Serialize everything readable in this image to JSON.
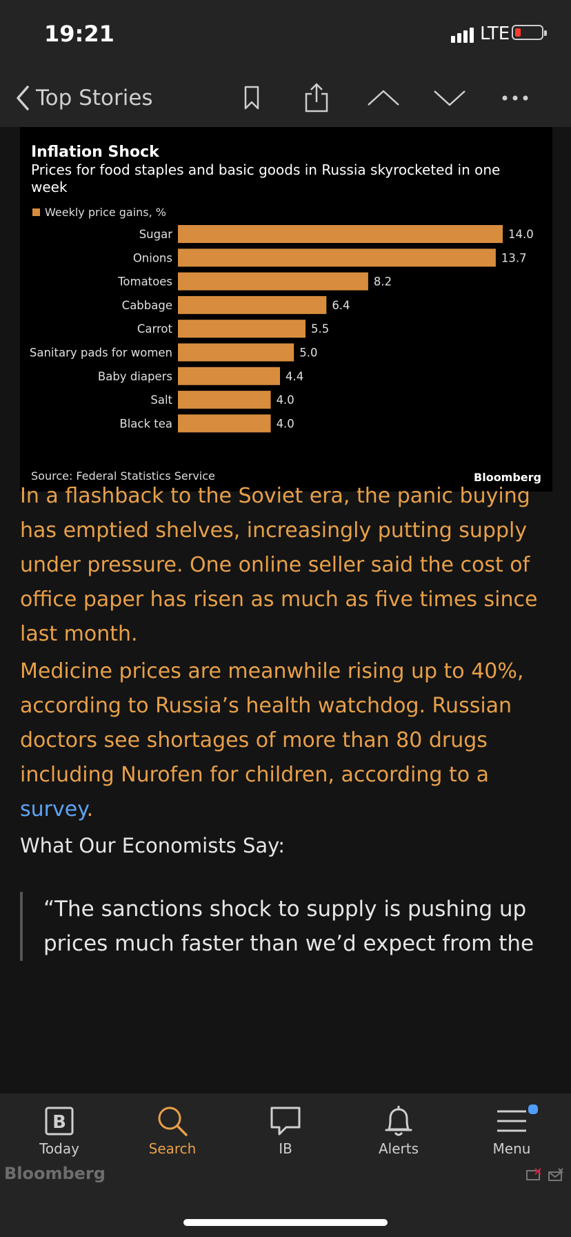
{
  "status_bar": {
    "time": "19:21",
    "carrier": "LTE"
  },
  "nav": {
    "back_label": "Top Stories"
  },
  "chart_data": {
    "type": "bar",
    "title": "Inflation Shock",
    "subtitle": "Prices for food staples and basic goods in Russia skyrocketed in one week",
    "legend": [
      "Weekly price gains, %"
    ],
    "categories": [
      "Sugar",
      "Onions",
      "Tomatoes",
      "Cabbage",
      "Carrot",
      "Sanitary pads for women",
      "Baby diapers",
      "Salt",
      "Black tea"
    ],
    "values": [
      14.0,
      13.7,
      8.2,
      6.4,
      5.5,
      5.0,
      4.4,
      4.0,
      4.0
    ],
    "value_labels": [
      "14.0",
      "13.7",
      "8.2",
      "6.4",
      "5.5",
      "5.0",
      "4.4",
      "4.0",
      "4.0"
    ],
    "orientation": "horizontal",
    "xlim": [
      0,
      14
    ],
    "bar_color": "#d88d3e",
    "source": "Source: Federal Statistics Service",
    "brand": "Bloomberg"
  },
  "article": {
    "paragraph_1": "In a flashback to the Soviet era, the panic buying has emptied shelves, increasingly putting supply under pressure. One online seller said the cost of office paper has risen as much as five times since last month.",
    "paragraph_2": "Medicine prices are meanwhile rising up to 40%, according to Russia’s health watchdog. Russian doctors see shortages of more than 80 drugs including Nurofen for children, according to a ",
    "paragraph_2_link": "survey",
    "paragraph_2_end": ".",
    "subhead": "What Our Economists Say:",
    "quote": "“The sanctions shock to supply is pushing up prices much faster than we’d expect from the"
  },
  "tabs": [
    {
      "label": "Today",
      "icon": "bloomberg-b-icon"
    },
    {
      "label": "Search",
      "icon": "search-icon"
    },
    {
      "label": "IB",
      "icon": "chat-bubble-icon"
    },
    {
      "label": "Alerts",
      "icon": "bell-icon"
    },
    {
      "label": "Menu",
      "icon": "menu-icon"
    }
  ],
  "active_tab": "Search",
  "footer": {
    "brand": "Bloomberg"
  },
  "colors": {
    "accent": "#e8a04a",
    "link": "#5ea3f3",
    "bar": "#d88d3e",
    "background": "#141414",
    "bar_bg": "#242424",
    "badge": "#4f9df7"
  }
}
